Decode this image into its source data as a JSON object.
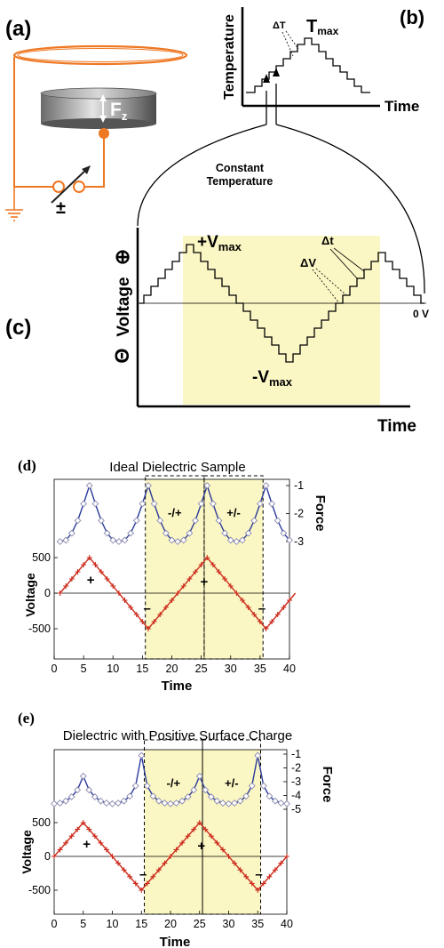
{
  "panel_labels": {
    "a": "(a)",
    "b": "(b)",
    "c": "(c)",
    "d": "(d)",
    "e": "(e)"
  },
  "panel_a": {
    "force_label": "F",
    "force_sub": "z",
    "polarity": "±"
  },
  "panel_b": {
    "ylabel": "Temperature",
    "xlabel": "Time",
    "delta_label": "ΔT",
    "max_label": "T",
    "max_sub": "max"
  },
  "connector_label_line1": "Constant",
  "connector_label_line2": "Temperature",
  "panel_c": {
    "ylabel": "Voltage",
    "ylabel_plus": "⊕",
    "ylabel_minus": "Θ",
    "xlabel": "Time",
    "vmax_label": "+V",
    "vmin_label": "-V",
    "vmax_sub": "max",
    "dt_label": "Δt",
    "dv_label": "ΔV",
    "zero_label": "0 V"
  },
  "colors": {
    "highlight": "#fbf7c4",
    "orange": "#ee7722",
    "force_curve": "#2b3a9a",
    "voltage_curve": "#cc2b1d"
  },
  "chart_data": [
    {
      "type": "line",
      "title": "Ideal Dielectric Sample",
      "xlabel": "Time",
      "ylabel_left": "Voltage",
      "ylabel_right": "Force",
      "xlim": [
        0,
        40
      ],
      "x_ticks": [
        "0",
        "5",
        "10",
        "15",
        "20",
        "25",
        "30",
        "35",
        "40"
      ],
      "voltage_ticks": [
        "500",
        "0",
        "-500"
      ],
      "force_ticks": [
        "-1",
        "-2",
        "-3"
      ],
      "region_labels": [
        "-/+",
        "+/-"
      ],
      "sign_labels": [
        "+",
        "–",
        "+",
        "–"
      ],
      "series": [
        {
          "name": "Voltage",
          "x": [
            1,
            6,
            16,
            26,
            36,
            41
          ],
          "y": [
            0,
            500,
            -500,
            500,
            -500,
            0
          ]
        },
        {
          "name": "Force",
          "x": [
            1,
            2,
            3,
            4,
            5,
            6,
            7,
            8,
            9,
            10,
            11,
            12,
            13,
            14,
            15,
            16,
            17,
            18,
            19,
            20,
            21,
            22,
            23,
            24,
            25,
            26,
            27,
            28,
            29,
            30,
            31,
            32,
            33,
            34,
            35,
            36,
            37,
            38,
            39,
            40
          ],
          "y": [
            -3,
            -2.95,
            -2.7,
            -2.25,
            -1.65,
            -1,
            -1.65,
            -2.25,
            -2.7,
            -2.95,
            -3,
            -2.95,
            -2.7,
            -2.25,
            -1.65,
            -1,
            -1.65,
            -2.25,
            -2.7,
            -2.95,
            -3,
            -2.95,
            -2.7,
            -2.25,
            -1.65,
            -1,
            -1.65,
            -2.25,
            -2.7,
            -2.95,
            -3,
            -2.95,
            -2.7,
            -2.25,
            -1.65,
            -1,
            -1.65,
            -2.25,
            -2.7,
            -2.95
          ]
        }
      ]
    },
    {
      "type": "line",
      "title": "Dielectric with Positive Surface Charge",
      "xlabel": "Time",
      "ylabel_left": "Voltage",
      "ylabel_right": "Force",
      "xlim": [
        0,
        40
      ],
      "x_ticks": [
        "0",
        "5",
        "10",
        "15",
        "20",
        "25",
        "30",
        "35",
        "40"
      ],
      "voltage_ticks": [
        "500",
        "0",
        "-500"
      ],
      "force_ticks": [
        "-1",
        "-2",
        "-3",
        "-4",
        "-5"
      ],
      "region_labels": [
        "-/+",
        "+/-"
      ],
      "sign_labels": [
        "+",
        "–",
        "+",
        "–"
      ],
      "series": [
        {
          "name": "Voltage",
          "x": [
            0,
            5,
            15,
            25,
            35,
            40
          ],
          "y": [
            0,
            500,
            -500,
            500,
            -500,
            0
          ]
        },
        {
          "name": "Force",
          "x": [
            0,
            1,
            2,
            3,
            4,
            5,
            6,
            7,
            8,
            9,
            10,
            11,
            12,
            13,
            14,
            15,
            16,
            17,
            18,
            19,
            20,
            21,
            22,
            23,
            24,
            25,
            26,
            27,
            28,
            29,
            30,
            31,
            32,
            33,
            34,
            35,
            36,
            37,
            38,
            39,
            40
          ],
          "y": [
            -4.6,
            -4.55,
            -4.4,
            -4.1,
            -3.6,
            -2.6,
            -3.6,
            -4.1,
            -4.4,
            -4.55,
            -4.6,
            -4.55,
            -4.4,
            -4.05,
            -3.3,
            -1.1,
            -3.3,
            -4.05,
            -4.4,
            -4.55,
            -4.6,
            -4.55,
            -4.4,
            -4.1,
            -3.6,
            -2.6,
            -3.6,
            -4.1,
            -4.4,
            -4.55,
            -4.6,
            -4.55,
            -4.4,
            -4.05,
            -3.3,
            -1.1,
            -3.3,
            -4.05,
            -4.4,
            -4.55,
            -4.6
          ]
        }
      ]
    }
  ]
}
